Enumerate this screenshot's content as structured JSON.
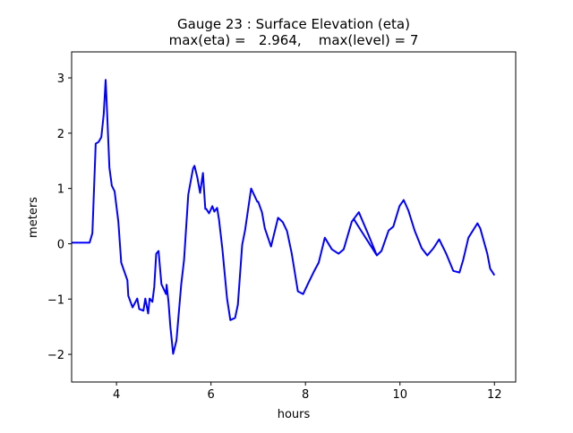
{
  "chart_data": {
    "type": "line",
    "title": "Gauge 23 : Surface Elevation (eta)",
    "subtitle": "max(eta) =   2.964,    max(level) = 7",
    "xlabel": "hours",
    "ylabel": "meters",
    "xlim": [
      3.05,
      12.45
    ],
    "ylim": [
      -2.5,
      3.47
    ],
    "xticks": [
      4,
      6,
      8,
      10,
      12
    ],
    "xtick_labels": [
      "4",
      "6",
      "8",
      "10",
      "12"
    ],
    "yticks": [
      3,
      2,
      1,
      0,
      -1,
      -2
    ],
    "ytick_labels": [
      "3",
      "2",
      "1",
      "0",
      "−1",
      "−2"
    ],
    "grid": false,
    "series": [
      {
        "name": "eta",
        "color": "#0000ff",
        "x": [
          3.05,
          3.43,
          3.49,
          3.56,
          3.62,
          3.68,
          3.73,
          3.77,
          3.79,
          3.85,
          3.9,
          3.96,
          4.04,
          4.1,
          4.23,
          4.25,
          4.34,
          4.44,
          4.48,
          4.57,
          4.61,
          4.67,
          4.7,
          4.76,
          4.8,
          4.84,
          4.89,
          4.95,
          5.05,
          5.06,
          5.1,
          5.14,
          5.2,
          5.27,
          5.37,
          5.43,
          5.52,
          5.62,
          5.65,
          5.71,
          5.77,
          5.83,
          5.88,
          5.9,
          5.96,
          6.03,
          6.07,
          6.13,
          6.17,
          6.24,
          6.34,
          6.41,
          6.51,
          6.57,
          6.66,
          6.72,
          6.85,
          6.98,
          7.0,
          7.08,
          7.14,
          7.27,
          7.42,
          7.52,
          7.61,
          7.71,
          7.84,
          7.95,
          8.05,
          8.18,
          8.28,
          8.41,
          8.56,
          8.7,
          8.81,
          8.98,
          9.13,
          9.32,
          9.51,
          9.02,
          9.51,
          9.61,
          9.76,
          9.86,
          9.99,
          10.08,
          10.18,
          10.31,
          10.46,
          10.58,
          10.71,
          10.83,
          10.98,
          11.13,
          11.26,
          11.34,
          11.45,
          11.64,
          11.7,
          11.85,
          11.91,
          12.0
        ],
        "y": [
          0.02,
          0.02,
          0.19,
          1.81,
          1.84,
          1.93,
          2.35,
          2.964,
          2.62,
          1.38,
          1.05,
          0.95,
          0.4,
          -0.34,
          -0.66,
          -0.94,
          -1.15,
          -0.99,
          -1.18,
          -1.21,
          -0.99,
          -1.26,
          -0.99,
          -1.05,
          -0.78,
          -0.18,
          -0.13,
          -0.73,
          -0.91,
          -0.74,
          -1.05,
          -1.5,
          -1.99,
          -1.75,
          -0.74,
          -0.29,
          0.89,
          1.36,
          1.41,
          1.2,
          0.92,
          1.28,
          0.63,
          0.63,
          0.55,
          0.68,
          0.58,
          0.65,
          0.44,
          -0.08,
          -0.99,
          -1.38,
          -1.34,
          -1.1,
          -0.02,
          0.24,
          1.0,
          0.76,
          0.76,
          0.57,
          0.28,
          -0.05,
          0.47,
          0.39,
          0.23,
          -0.18,
          -0.86,
          -0.91,
          -0.73,
          -0.5,
          -0.34,
          0.11,
          -0.1,
          -0.18,
          -0.1,
          0.4,
          0.57,
          0.19,
          -0.21,
          0.45,
          -0.21,
          -0.13,
          0.24,
          0.31,
          0.68,
          0.79,
          0.6,
          0.24,
          -0.08,
          -0.21,
          -0.08,
          0.08,
          -0.18,
          -0.49,
          -0.52,
          -0.29,
          0.11,
          0.37,
          0.28,
          -0.18,
          -0.45,
          -0.57
        ]
      }
    ]
  }
}
